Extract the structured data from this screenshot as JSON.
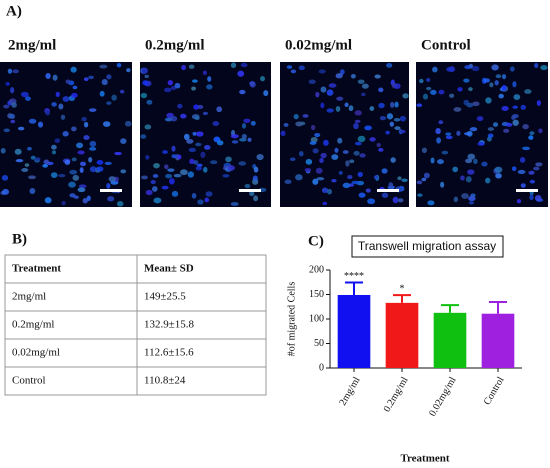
{
  "panels": {
    "a": "A)",
    "b": "B)",
    "c": "C)"
  },
  "images": [
    "2mg/ml",
    "0.2mg/ml",
    "0.02mg/ml",
    "Control"
  ],
  "table": {
    "header": [
      "Treatment",
      "Mean± SD"
    ],
    "rows": [
      [
        "2mg/ml",
        "149±25.5"
      ],
      [
        "0.2mg/ml",
        "132.9±15.8"
      ],
      [
        "0.02mg/ml",
        "112.6±15.6"
      ],
      [
        "Control",
        "110.8±24"
      ]
    ]
  },
  "chart_data": {
    "type": "bar",
    "title": "Transwell migration assay",
    "x_label": "Treatment",
    "y_label": "#of migrated Cells",
    "categories": [
      "2mg/ml",
      "0.2mg/ml",
      "0.02mg/ml",
      "Control"
    ],
    "values": [
      149,
      132.9,
      112.6,
      110.8
    ],
    "errors": [
      25.5,
      15.8,
      15.6,
      24
    ],
    "colors": [
      "#1010f0",
      "#f01818",
      "#10c010",
      "#a020e0"
    ],
    "annotations": [
      "****",
      "*"
    ],
    "ylim": [
      0,
      200
    ],
    "yticks": [
      0,
      50,
      100,
      150,
      200
    ]
  }
}
